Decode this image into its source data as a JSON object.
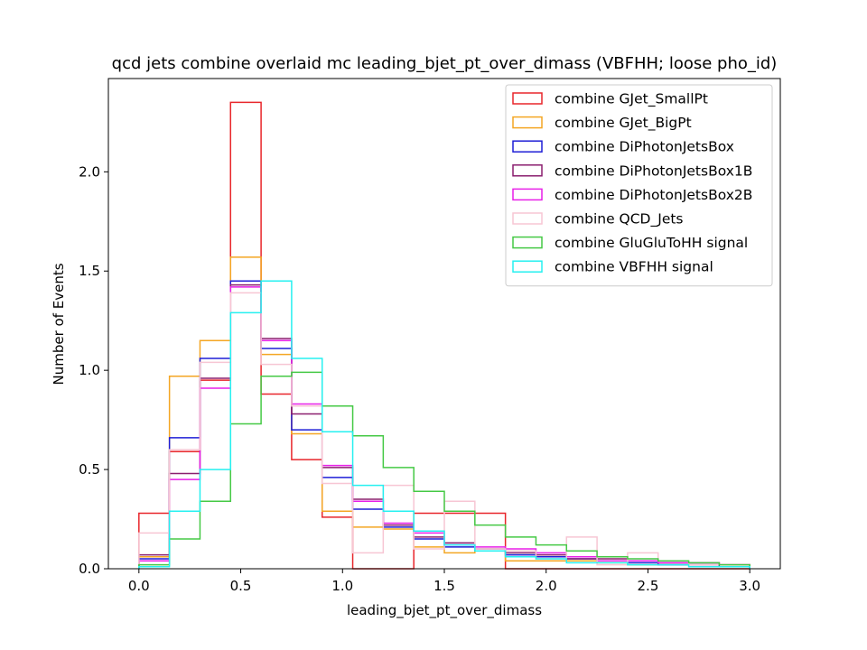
{
  "chart_data": {
    "type": "step-histogram",
    "title": "qcd jets combine overlaid mc leading_bjet_pt_over_dimass (VBFHH; loose pho_id)",
    "xlabel": "leading_bjet_pt_over_dimass",
    "ylabel": "Number of Events",
    "xlim": [
      -0.15,
      3.15
    ],
    "ylim": [
      0,
      2.47
    ],
    "xticks": [
      "0.0",
      "0.5",
      "1.0",
      "1.5",
      "2.0",
      "2.5",
      "3.0"
    ],
    "xtick_values": [
      0,
      0.5,
      1.0,
      1.5,
      2.0,
      2.5,
      3.0
    ],
    "yticks": [
      "0.0",
      "0.5",
      "1.0",
      "1.5",
      "2.0"
    ],
    "ytick_values": [
      0,
      0.5,
      1.0,
      1.5,
      2.0
    ],
    "bin_edges": [
      0,
      0.15,
      0.3,
      0.45,
      0.6,
      0.75,
      0.9,
      1.05,
      1.2,
      1.35,
      1.5,
      1.65,
      1.8,
      1.95,
      2.1,
      2.25,
      2.4,
      2.55,
      2.7,
      2.85,
      3.0
    ],
    "legend_position": "upper right",
    "grid": false,
    "series": [
      {
        "name": "combine GJet_SmallPt",
        "color": "#e8262b",
        "values": [
          0.28,
          0.59,
          0.95,
          2.35,
          0.88,
          0.55,
          0.26,
          0.0,
          0.0,
          0.28,
          0.28,
          0.28,
          0.0,
          0.0,
          0.0,
          0.0,
          0.0,
          0.0,
          0.0,
          0.0
        ]
      },
      {
        "name": "combine GJet_BigPt",
        "color": "#f4a623",
        "values": [
          0.06,
          0.97,
          1.15,
          1.57,
          1.08,
          0.68,
          0.29,
          0.21,
          0.2,
          0.11,
          0.08,
          0.09,
          0.04,
          0.04,
          0.04,
          0.03,
          0.02,
          0.02,
          0.02,
          0.02
        ]
      },
      {
        "name": "combine DiPhotonJetsBox",
        "color": "#1f1fd6",
        "values": [
          0.05,
          0.66,
          1.06,
          1.45,
          1.11,
          0.7,
          0.46,
          0.3,
          0.21,
          0.15,
          0.11,
          0.09,
          0.07,
          0.06,
          0.05,
          0.04,
          0.03,
          0.02,
          0.02,
          0.01
        ]
      },
      {
        "name": "combine DiPhotonJetsBox1B",
        "color": "#8b1f6f",
        "values": [
          0.07,
          0.48,
          0.96,
          1.43,
          1.16,
          0.78,
          0.51,
          0.35,
          0.22,
          0.16,
          0.13,
          0.1,
          0.08,
          0.07,
          0.05,
          0.05,
          0.04,
          0.03,
          0.03,
          0.02
        ]
      },
      {
        "name": "combine DiPhotonJetsBox2B",
        "color": "#e81fe8",
        "values": [
          0.04,
          0.45,
          0.91,
          1.42,
          1.15,
          0.83,
          0.52,
          0.34,
          0.23,
          0.18,
          0.12,
          0.11,
          0.1,
          0.08,
          0.06,
          0.04,
          0.04,
          0.03,
          0.03,
          0.02
        ]
      },
      {
        "name": "combine QCD_Jets",
        "color": "#f7c6d4",
        "values": [
          0.18,
          0.6,
          1.04,
          1.39,
          1.03,
          0.82,
          0.43,
          0.08,
          0.42,
          0.1,
          0.34,
          0.1,
          0.09,
          0.05,
          0.16,
          0.02,
          0.08,
          0.04,
          0.02,
          0.02
        ]
      },
      {
        "name": "combine GluGluToHH signal",
        "color": "#45c945",
        "values": [
          0.02,
          0.15,
          0.34,
          0.73,
          0.97,
          0.99,
          0.82,
          0.67,
          0.51,
          0.39,
          0.29,
          0.22,
          0.16,
          0.12,
          0.09,
          0.06,
          0.05,
          0.04,
          0.03,
          0.02
        ]
      },
      {
        "name": "combine VBFHH signal",
        "color": "#26f0f0",
        "values": [
          0.01,
          0.29,
          0.5,
          1.29,
          1.45,
          1.06,
          0.69,
          0.42,
          0.29,
          0.19,
          0.12,
          0.09,
          0.06,
          0.05,
          0.03,
          0.03,
          0.02,
          0.02,
          0.01,
          0.01
        ]
      }
    ]
  }
}
